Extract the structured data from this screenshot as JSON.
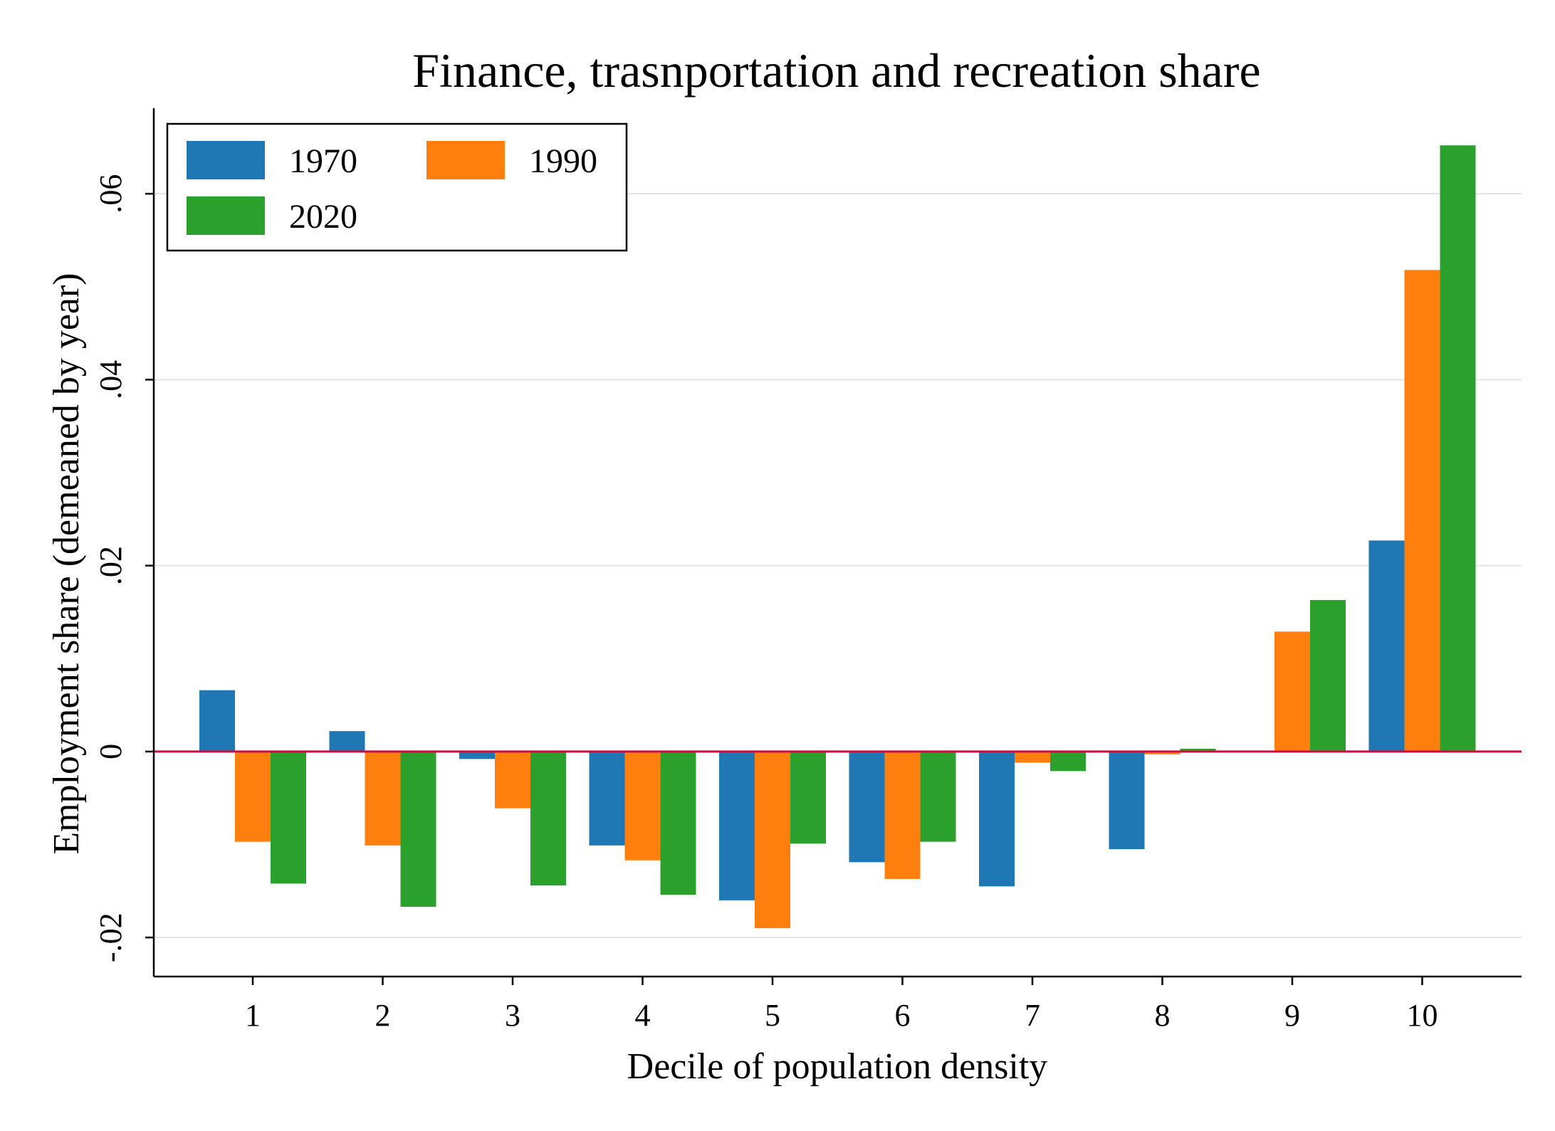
{
  "chart_data": {
    "type": "bar",
    "title": "Finance, trasnportation and recreation share",
    "xlabel": "Decile of population density",
    "ylabel": "Employment share (demeaned by year)",
    "categories": [
      "1",
      "2",
      "3",
      "4",
      "5",
      "6",
      "7",
      "8",
      "9",
      "10"
    ],
    "series": [
      {
        "name": "1970",
        "color": "#1f77b4",
        "values": [
          0.0066,
          0.0022,
          -0.0008,
          -0.0101,
          -0.016,
          -0.0119,
          -0.0145,
          -0.0105,
          0.0,
          0.0227
        ]
      },
      {
        "name": "1990",
        "color": "#ff7f0e",
        "values": [
          -0.0097,
          -0.0101,
          -0.0061,
          -0.0117,
          -0.019,
          -0.0137,
          -0.0012,
          -0.0003,
          0.0129,
          0.0518
        ]
      },
      {
        "name": "2020",
        "color": "#2ca02c",
        "values": [
          -0.0142,
          -0.0167,
          -0.0144,
          -0.0154,
          -0.0099,
          -0.0097,
          -0.0021,
          0.0003,
          0.0163,
          0.0652
        ]
      }
    ],
    "yticks": [
      -0.02,
      0,
      0.02,
      0.04,
      0.06
    ],
    "ytick_labels": [
      "-.02",
      "0",
      ".02",
      ".04",
      ".06"
    ],
    "ylim": [
      -0.0242,
      0.0692
    ],
    "grid": true,
    "reference_line": {
      "value": 0,
      "color": "#c8103e"
    },
    "legend": {
      "position": "top-left",
      "columns": 2
    }
  }
}
